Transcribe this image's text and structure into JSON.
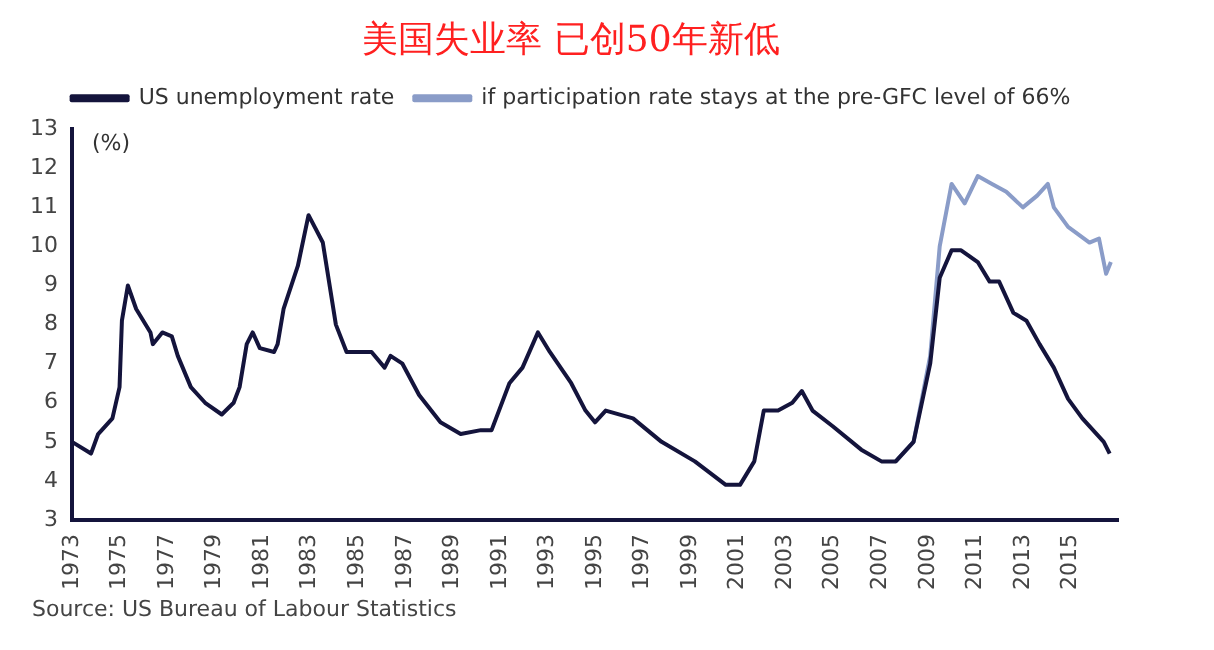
{
  "chart_data": {
    "type": "line",
    "title": "美国失业率 已创50年新低",
    "ylabel": "(%)",
    "annotations": [
      "Source: US Bureau of Labour Statistics"
    ],
    "xlim": [
      1973,
      2017
    ],
    "xticks": [
      1973,
      1975,
      1977,
      1979,
      1981,
      1983,
      1985,
      1987,
      1989,
      1991,
      1993,
      1995,
      1997,
      1999,
      2001,
      2003,
      2005,
      2007,
      2009,
      2011,
      2013,
      2015
    ],
    "ylim": [
      3,
      13
    ],
    "yticks": [
      3,
      4,
      5,
      6,
      7,
      8,
      9,
      10,
      11,
      12,
      13
    ],
    "grid": false,
    "legend": "top",
    "marker": "none",
    "line_style": "solid",
    "series": [
      {
        "name": "US unemployment rate",
        "color": "#14143c",
        "x": [
          1973.0,
          1973.8,
          1974.1,
          1974.7,
          1975.0,
          1975.1,
          1975.35,
          1975.7,
          1976.3,
          1976.4,
          1976.8,
          1977.2,
          1977.45,
          1978.0,
          1978.6,
          1979.3,
          1979.8,
          1980.05,
          1980.35,
          1980.6,
          1980.9,
          1981.5,
          1981.65,
          1981.9,
          1982.5,
          1982.95,
          1983.55,
          1984.1,
          1984.55,
          1985.6,
          1986.15,
          1986.4,
          1986.9,
          1987.6,
          1988.5,
          1989.35,
          1990.2,
          1990.65,
          1991.4,
          1991.95,
          1992.6,
          1993.1,
          1994.0,
          1994.6,
          1995.0,
          1995.45,
          1996.6,
          1997.8,
          1999.2,
          2000.5,
          2001.1,
          2001.7,
          2002.1,
          2002.7,
          2003.3,
          2003.7,
          2004.15,
          2005.0,
          2006.2,
          2007.05,
          2007.65,
          2008.4,
          2009.1,
          2009.5,
          2010.0,
          2010.4,
          2011.1,
          2011.6,
          2012.0,
          2012.6,
          2013.15,
          2013.7,
          2014.3,
          2014.9,
          2015.5,
          2016.4,
          2016.65
        ],
        "values": [
          5.0,
          4.7,
          5.2,
          5.6,
          6.4,
          8.1,
          9.0,
          8.4,
          7.8,
          7.5,
          7.8,
          7.7,
          7.2,
          6.4,
          6.0,
          5.7,
          6.0,
          6.4,
          7.5,
          7.8,
          7.4,
          7.3,
          7.5,
          8.4,
          9.5,
          10.8,
          10.1,
          8.0,
          7.3,
          7.3,
          6.9,
          7.2,
          7.0,
          6.2,
          5.5,
          5.2,
          5.3,
          5.3,
          6.5,
          6.9,
          7.8,
          7.3,
          6.5,
          5.8,
          5.5,
          5.8,
          5.6,
          5.0,
          4.5,
          3.9,
          3.9,
          4.5,
          5.8,
          5.8,
          6.0,
          6.3,
          5.8,
          5.4,
          4.8,
          4.5,
          4.5,
          5.0,
          7.0,
          9.2,
          9.9,
          9.9,
          9.6,
          9.1,
          9.1,
          8.3,
          8.1,
          7.5,
          6.9,
          6.1,
          5.6,
          5.0,
          4.7
        ]
      },
      {
        "name": "if participation rate stays at the pre-GFC level of 66%",
        "color": "#8a9cc8",
        "x": [
          2007.65,
          2008.4,
          2009.1,
          2009.5,
          2010.0,
          2010.55,
          2011.1,
          2011.7,
          2012.3,
          2013.0,
          2013.6,
          2014.05,
          2014.3,
          2014.9,
          2015.8,
          2016.2,
          2016.5,
          2016.7
        ],
        "values": [
          4.5,
          5.0,
          7.2,
          10.0,
          11.6,
          11.1,
          11.8,
          11.6,
          11.4,
          11.0,
          11.3,
          11.6,
          11.0,
          10.5,
          10.1,
          10.2,
          9.3,
          9.6
        ]
      }
    ]
  }
}
